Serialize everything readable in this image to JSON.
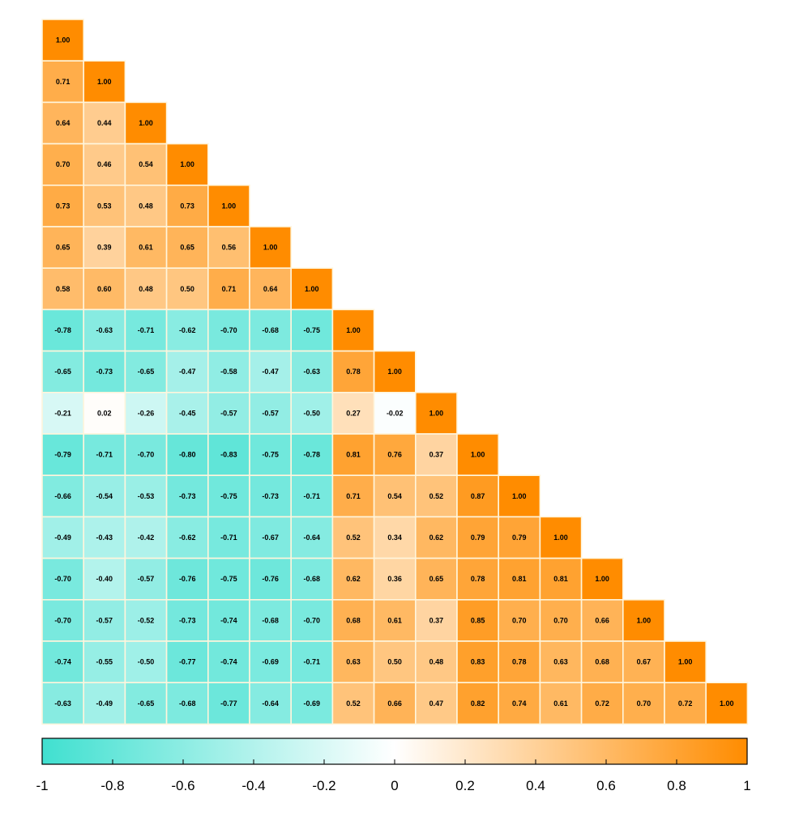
{
  "chart_data": {
    "type": "heatmap",
    "title": "",
    "subtitle": "",
    "xlabel": "",
    "ylabel": "",
    "variables": 17,
    "layout": "lower-triangle",
    "matrix": [
      [
        1.0
      ],
      [
        0.71,
        1.0
      ],
      [
        0.64,
        0.44,
        1.0
      ],
      [
        0.7,
        0.46,
        0.54,
        1.0
      ],
      [
        0.73,
        0.53,
        0.48,
        0.73,
        1.0
      ],
      [
        0.65,
        0.39,
        0.61,
        0.65,
        0.56,
        1.0
      ],
      [
        0.58,
        0.6,
        0.48,
        0.5,
        0.71,
        0.64,
        1.0
      ],
      [
        -0.78,
        -0.63,
        -0.71,
        -0.62,
        -0.7,
        -0.68,
        -0.75,
        1.0
      ],
      [
        -0.65,
        -0.73,
        -0.65,
        -0.47,
        -0.58,
        -0.47,
        -0.63,
        0.78,
        1.0
      ],
      [
        -0.21,
        0.02,
        -0.26,
        -0.45,
        -0.57,
        -0.57,
        -0.5,
        0.27,
        -0.02,
        1.0
      ],
      [
        -0.79,
        -0.71,
        -0.7,
        -0.8,
        -0.83,
        -0.75,
        -0.78,
        0.81,
        0.76,
        0.37,
        1.0
      ],
      [
        -0.66,
        -0.54,
        -0.53,
        -0.73,
        -0.75,
        -0.73,
        -0.71,
        0.71,
        0.54,
        0.52,
        0.87,
        1.0
      ],
      [
        -0.49,
        -0.43,
        -0.42,
        -0.62,
        -0.71,
        -0.67,
        -0.64,
        0.52,
        0.34,
        0.62,
        0.79,
        0.79,
        1.0
      ],
      [
        -0.7,
        -0.4,
        -0.57,
        -0.76,
        -0.75,
        -0.76,
        -0.68,
        0.62,
        0.36,
        0.65,
        0.78,
        0.81,
        0.81,
        1.0
      ],
      [
        -0.7,
        -0.57,
        -0.52,
        -0.73,
        -0.74,
        -0.68,
        -0.7,
        0.68,
        0.61,
        0.37,
        0.85,
        0.7,
        0.7,
        0.66,
        1.0
      ],
      [
        -0.74,
        -0.55,
        -0.5,
        -0.77,
        -0.74,
        -0.69,
        -0.71,
        0.63,
        0.5,
        0.48,
        0.83,
        0.78,
        0.63,
        0.68,
        0.67,
        1.0
      ],
      [
        -0.63,
        -0.49,
        -0.65,
        -0.68,
        -0.77,
        -0.64,
        -0.69,
        0.52,
        0.66,
        0.47,
        0.82,
        0.74,
        0.61,
        0.72,
        0.7,
        0.72,
        1.0
      ]
    ],
    "colorbar": {
      "range": [
        -1,
        1
      ],
      "ticks": [
        -1,
        -0.8,
        -0.6,
        -0.4,
        -0.2,
        0,
        0.2,
        0.4,
        0.6,
        0.8,
        1
      ],
      "tick_labels": [
        "-1",
        "-0.8",
        "-0.6",
        "-0.4",
        "-0.2",
        "0",
        "0.2",
        "0.4",
        "0.6",
        "0.8",
        "1"
      ],
      "position": "bottom"
    },
    "colors": {
      "negative": "#40E0D0",
      "zero": "#FFFFFF",
      "positive": "#FF8C00",
      "cell_border": "#FFF5DC",
      "outline": "#000000"
    },
    "grid": false,
    "legend": "none"
  }
}
